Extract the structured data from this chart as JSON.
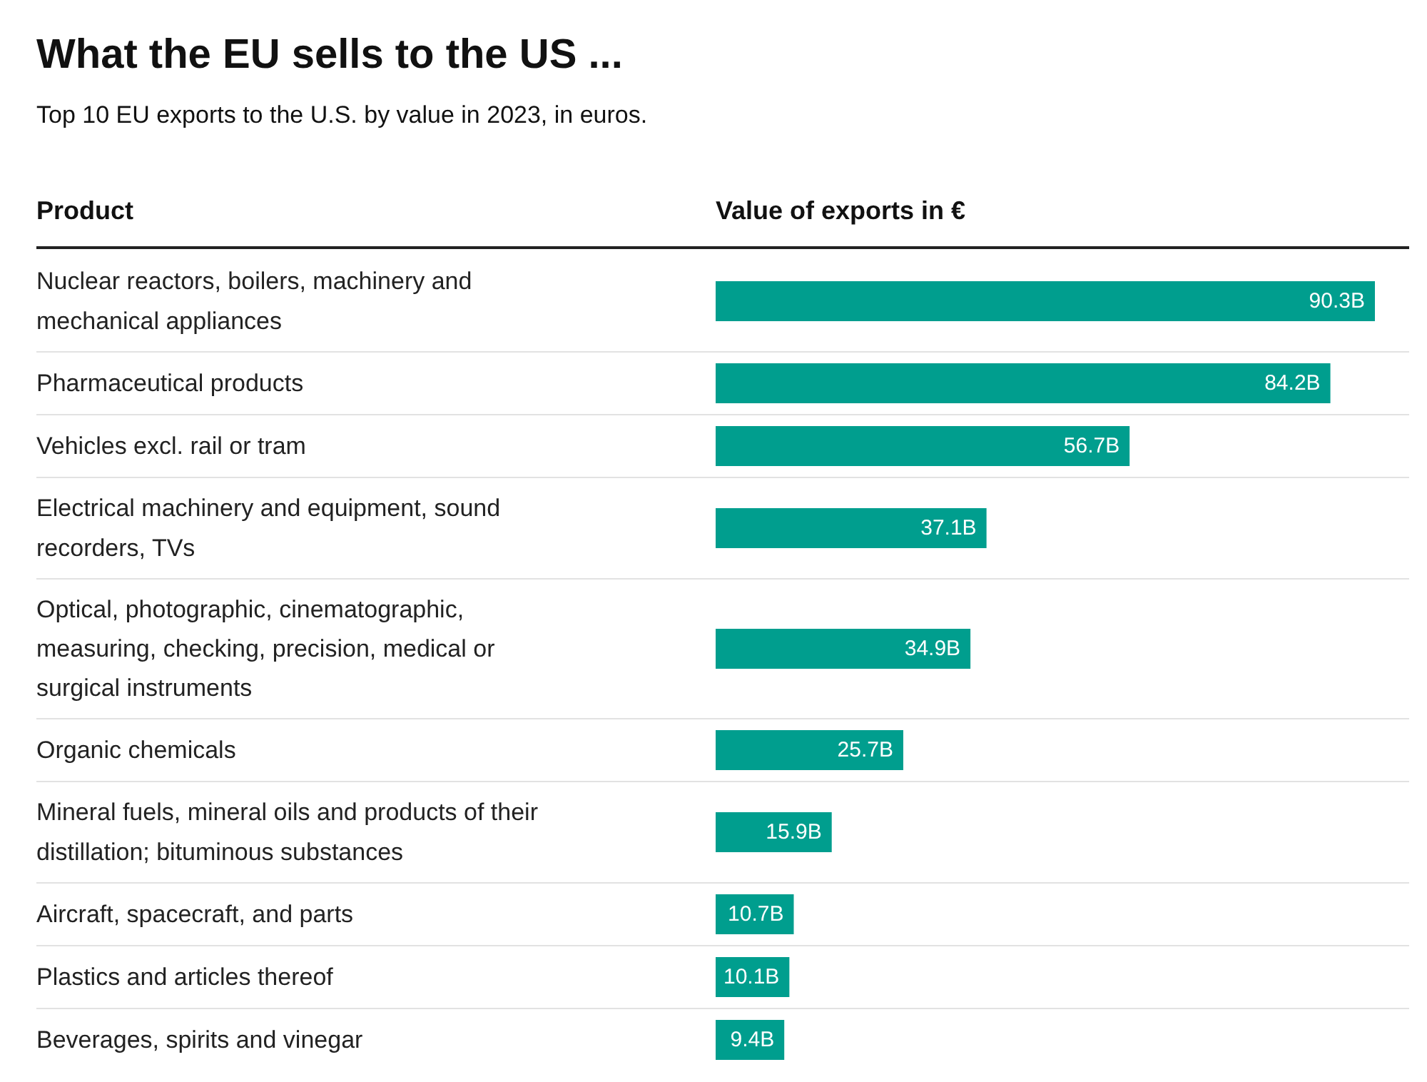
{
  "chart_data": {
    "type": "bar",
    "orientation": "horizontal",
    "title": "What the EU sells to the US ...",
    "subtitle": "Top 10 EU exports to the U.S. by value in 2023, in euros.",
    "ylabel": "Product",
    "xlabel": "Value of exports in €",
    "categories": [
      "Nuclear reactors, boilers, machinery and mechanical appliances",
      "Pharmaceutical products",
      "Vehicles excl. rail or tram",
      "Electrical machinery and equipment, sound recorders, TVs",
      "Optical, photographic, cinematographic, measuring, checking, precision, medical or surgical instruments",
      "Organic chemicals",
      "Mineral fuels, mineral oils and products of their distillation; bituminous substances",
      "Aircraft, spacecraft, and parts",
      "Plastics and articles thereof",
      "Beverages, spirits and vinegar"
    ],
    "values": [
      90.3,
      84.2,
      56.7,
      37.1,
      34.9,
      25.7,
      15.9,
      10.7,
      10.1,
      9.4
    ],
    "value_labels": [
      "90.3B",
      "84.2B",
      "56.7B",
      "37.1B",
      "34.9B",
      "25.7B",
      "15.9B",
      "10.7B",
      "10.1B",
      "9.4B"
    ],
    "color": "#009e8e"
  }
}
